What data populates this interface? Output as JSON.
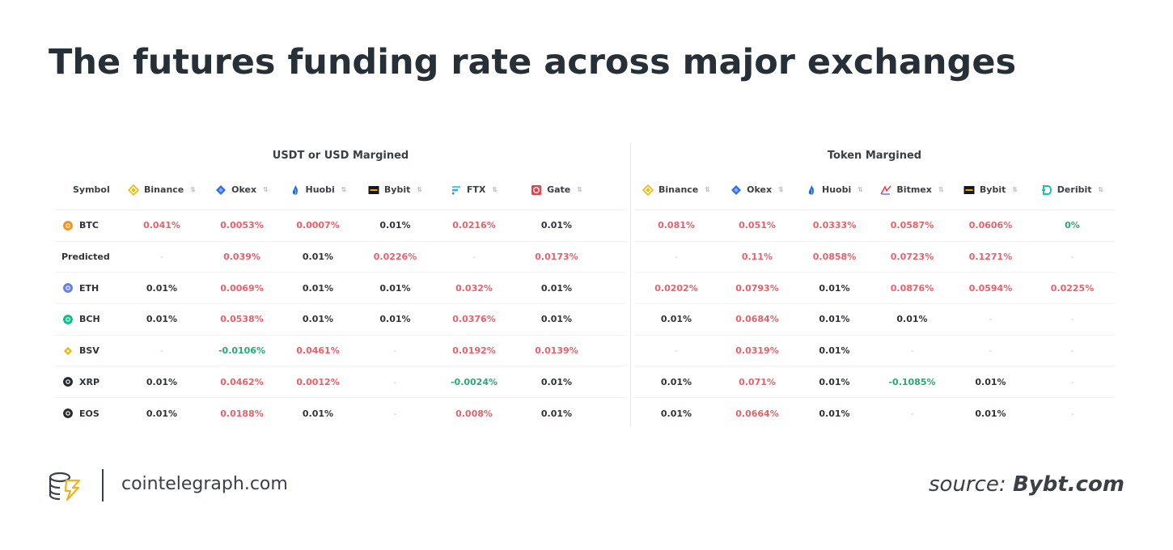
{
  "title": "The futures funding rate across major exchanges",
  "footer": {
    "site": "cointelegraph.com",
    "source_prefix": "source:",
    "source_name": "Bybt.com"
  },
  "colors": {
    "positive": "#e8606a",
    "negative": "#2aa876",
    "title": "#273036"
  },
  "chart_data": [
    {
      "type": "table",
      "title": "USDT or USD Margined",
      "symbol_header": "Symbol",
      "columns": [
        {
          "name": "Binance",
          "icon": "binance-icon"
        },
        {
          "name": "Okex",
          "icon": "okex-icon"
        },
        {
          "name": "Huobi",
          "icon": "huobi-icon"
        },
        {
          "name": "Bybit",
          "icon": "bybit-icon"
        },
        {
          "name": "FTX",
          "icon": "ftx-icon"
        },
        {
          "name": "Gate",
          "icon": "gate-icon"
        }
      ],
      "rows": [
        {
          "symbol": "BTC",
          "coin_icon": "btc-icon",
          "values": [
            "0.041%",
            "0.0053%",
            "0.0007%",
            "0.01%",
            "0.0216%",
            "0.01%"
          ]
        },
        {
          "symbol": "Predicted",
          "coin_icon": "",
          "values": [
            "-",
            "0.039%",
            "0.01%",
            "0.0226%",
            "-",
            "0.0173%"
          ]
        },
        {
          "symbol": "ETH",
          "coin_icon": "eth-icon",
          "values": [
            "0.01%",
            "0.0069%",
            "0.01%",
            "0.01%",
            "0.032%",
            "0.01%"
          ]
        },
        {
          "symbol": "BCH",
          "coin_icon": "bch-icon",
          "values": [
            "0.01%",
            "0.0538%",
            "0.01%",
            "0.01%",
            "0.0376%",
            "0.01%"
          ]
        },
        {
          "symbol": "BSV",
          "coin_icon": "bsv-icon",
          "values": [
            "-",
            "-0.0106%",
            "0.0461%",
            "-",
            "0.0192%",
            "0.0139%"
          ]
        },
        {
          "symbol": "XRP",
          "coin_icon": "xrp-icon",
          "values": [
            "0.01%",
            "0.0462%",
            "0.0012%",
            "-",
            "-0.0024%",
            "0.01%"
          ]
        },
        {
          "symbol": "EOS",
          "coin_icon": "eos-icon",
          "values": [
            "0.01%",
            "0.0188%",
            "0.01%",
            "-",
            "0.008%",
            "0.01%"
          ]
        }
      ]
    },
    {
      "type": "table",
      "title": "Token Margined",
      "columns": [
        {
          "name": "Binance",
          "icon": "binance-icon"
        },
        {
          "name": "Okex",
          "icon": "okex-icon"
        },
        {
          "name": "Huobi",
          "icon": "huobi-icon"
        },
        {
          "name": "Bitmex",
          "icon": "bitmex-icon"
        },
        {
          "name": "Bybit",
          "icon": "bybit-icon"
        },
        {
          "name": "Deribit",
          "icon": "deribit-icon"
        }
      ],
      "rows": [
        {
          "symbol": "BTC",
          "values": [
            "0.081%",
            "0.051%",
            "0.0333%",
            "0.0587%",
            "0.0606%",
            "0%"
          ]
        },
        {
          "symbol": "Predicted",
          "values": [
            "-",
            "0.11%",
            "0.0858%",
            "0.0723%",
            "0.1271%",
            "-"
          ]
        },
        {
          "symbol": "ETH",
          "values": [
            "0.0202%",
            "0.0793%",
            "0.01%",
            "0.0876%",
            "0.0594%",
            "0.0225%"
          ]
        },
        {
          "symbol": "BCH",
          "values": [
            "0.01%",
            "0.0684%",
            "0.01%",
            "0.01%",
            "-",
            "-"
          ]
        },
        {
          "symbol": "BSV",
          "values": [
            "-",
            "0.0319%",
            "0.01%",
            "-",
            "-",
            "-"
          ]
        },
        {
          "symbol": "XRP",
          "values": [
            "0.01%",
            "0.071%",
            "0.01%",
            "-0.1085%",
            "0.01%",
            "-"
          ]
        },
        {
          "symbol": "EOS",
          "values": [
            "0.01%",
            "0.0664%",
            "0.01%",
            "-",
            "0.01%",
            "-"
          ]
        }
      ]
    }
  ]
}
